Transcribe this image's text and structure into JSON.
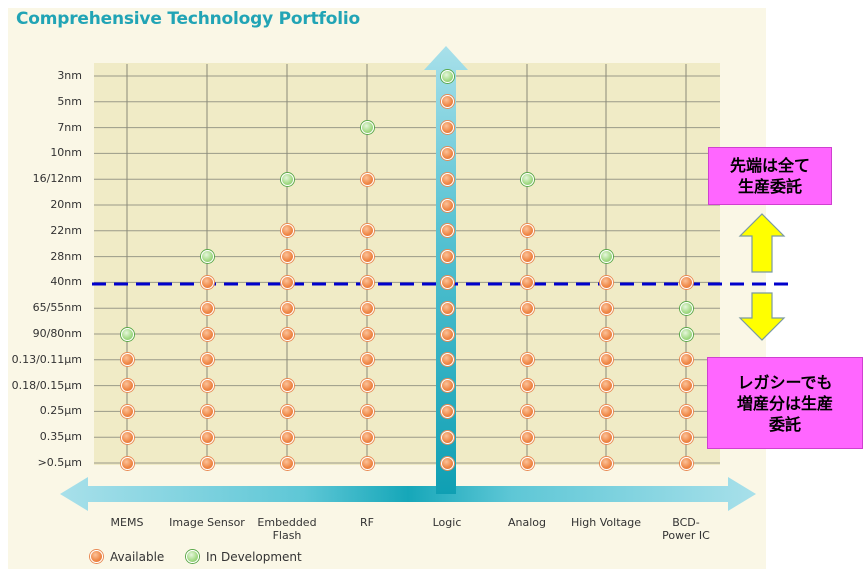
{
  "title": "Comprehensive Technology Portfolio",
  "rows": [
    "3nm",
    "5nm",
    "7nm",
    "10nm",
    "16/12nm",
    "20nm",
    "22nm",
    "28nm",
    "40nm",
    "65/55nm",
    "90/80nm",
    "0.13/0.11μm",
    "0.18/0.15μm",
    "0.25μm",
    "0.35μm",
    ">0.5μm"
  ],
  "columns": [
    {
      "label": "MEMS",
      "status": [
        "",
        "",
        "",
        "",
        "",
        "",
        "",
        "",
        "",
        "",
        "dev",
        "av",
        "av",
        "av",
        "av",
        "av"
      ]
    },
    {
      "label": "Image Sensor",
      "status": [
        "",
        "",
        "",
        "",
        "",
        "",
        "",
        "dev",
        "av",
        "av",
        "av",
        "av",
        "av",
        "av",
        "av",
        "av"
      ]
    },
    {
      "label": "Embedded Flash",
      "status": [
        "",
        "",
        "",
        "",
        "dev",
        "",
        "av",
        "av",
        "av",
        "av",
        "av",
        "",
        "av",
        "av",
        "av",
        "av"
      ]
    },
    {
      "label": "RF",
      "status": [
        "",
        "",
        "dev",
        "",
        "av",
        "",
        "av",
        "av",
        "av",
        "av",
        "av",
        "av",
        "av",
        "av",
        "av",
        "av"
      ]
    },
    {
      "label": "Logic",
      "status": [
        "dev",
        "av",
        "av",
        "av",
        "av",
        "av",
        "av",
        "av",
        "av",
        "av",
        "av",
        "av",
        "av",
        "av",
        "av",
        "av"
      ]
    },
    {
      "label": "Analog",
      "status": [
        "",
        "",
        "",
        "",
        "dev",
        "",
        "av",
        "av",
        "av",
        "av",
        "",
        "av",
        "av",
        "av",
        "av",
        "av"
      ]
    },
    {
      "label": "High Voltage",
      "status": [
        "",
        "",
        "",
        "",
        "",
        "",
        "",
        "dev",
        "av",
        "av",
        "av",
        "av",
        "av",
        "av",
        "av",
        "av"
      ]
    },
    {
      "label": "BCD-Power IC",
      "status": [
        "",
        "",
        "",
        "",
        "",
        "",
        "",
        "",
        "av",
        "dev",
        "dev",
        "av",
        "av",
        "av",
        "av",
        "av"
      ]
    }
  ],
  "legend": {
    "available": "Available",
    "in_development": "In Development"
  },
  "callouts": {
    "top": [
      "先端は全て",
      "生産委託"
    ],
    "bottom": [
      "レガシーでも",
      "増産分は生産",
      "委託"
    ]
  },
  "colors": {
    "title": "#21a4b5",
    "available": "#f08a4a",
    "in_development": "#a7dc8a",
    "callout_bg": "#ff66ff",
    "arrow_fill": "#ffff00",
    "dashed_line": "#0000cc",
    "axis": "#1aaabb"
  },
  "icons": {
    "arrow_up": "arrow-up-icon",
    "arrow_down": "arrow-down-icon"
  }
}
